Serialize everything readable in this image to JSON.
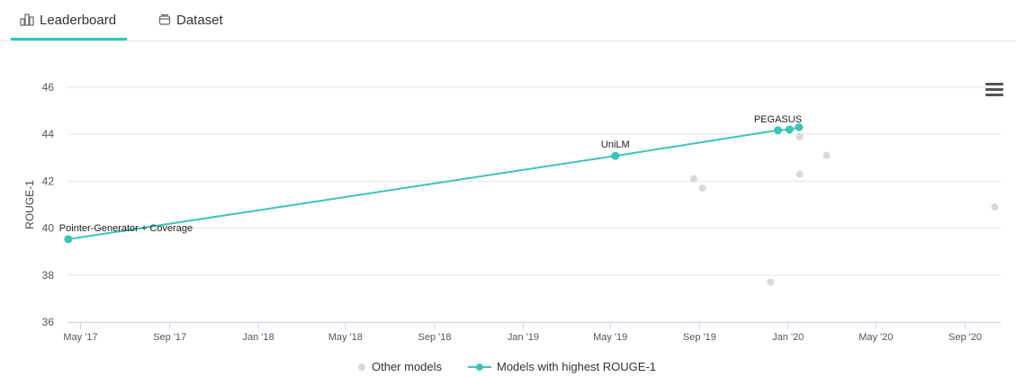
{
  "tabs": {
    "leaderboard": "Leaderboard",
    "dataset": "Dataset"
  },
  "colors": {
    "accent": "#21ccc0",
    "best_series": "#3dc4b8",
    "other_points": "#d9d9d9"
  },
  "chart_data": {
    "type": "scatter",
    "title": "",
    "xlabel": "",
    "ylabel": "ROUGE-1",
    "ylim": [
      36,
      46
    ],
    "xlim": [
      "2017-04-13",
      "2020-10-20"
    ],
    "yticks": [
      36,
      38,
      40,
      42,
      44,
      46
    ],
    "xticks": [
      {
        "date": "2017-05-01",
        "label": "May '17"
      },
      {
        "date": "2017-09-01",
        "label": "Sep '17"
      },
      {
        "date": "2018-01-01",
        "label": "Jan '18"
      },
      {
        "date": "2018-05-01",
        "label": "May '18"
      },
      {
        "date": "2018-09-01",
        "label": "Sep '18"
      },
      {
        "date": "2019-01-01",
        "label": "Jan '19"
      },
      {
        "date": "2019-05-01",
        "label": "May '19"
      },
      {
        "date": "2019-09-01",
        "label": "Sep '19"
      },
      {
        "date": "2020-01-01",
        "label": "Jan '20"
      },
      {
        "date": "2020-05-01",
        "label": "May '20"
      },
      {
        "date": "2020-09-01",
        "label": "Sep '20"
      }
    ],
    "grid": true,
    "legend_position": "bottom",
    "series": [
      {
        "name": "Other models",
        "points": [
          {
            "x": "2019-08-24",
            "y": 42.1
          },
          {
            "x": "2019-09-05",
            "y": 41.7
          },
          {
            "x": "2019-12-08",
            "y": 37.7
          },
          {
            "x": "2020-01-17",
            "y": 43.9
          },
          {
            "x": "2020-01-17",
            "y": 42.3
          },
          {
            "x": "2020-02-23",
            "y": 43.1
          },
          {
            "x": "2020-10-12",
            "y": 40.9
          }
        ]
      },
      {
        "name": "Models with highest ROUGE-1",
        "points": [
          {
            "x": "2017-04-14",
            "y": 39.53,
            "label": "Pointer-Generator + Coverage"
          },
          {
            "x": "2019-05-08",
            "y": 43.08,
            "label": "UniLM"
          },
          {
            "x": "2019-12-18",
            "y": 44.17,
            "label": "PEGASUS"
          },
          {
            "x": "2020-01-03",
            "y": 44.2
          },
          {
            "x": "2020-01-16",
            "y": 44.3
          }
        ]
      }
    ]
  }
}
